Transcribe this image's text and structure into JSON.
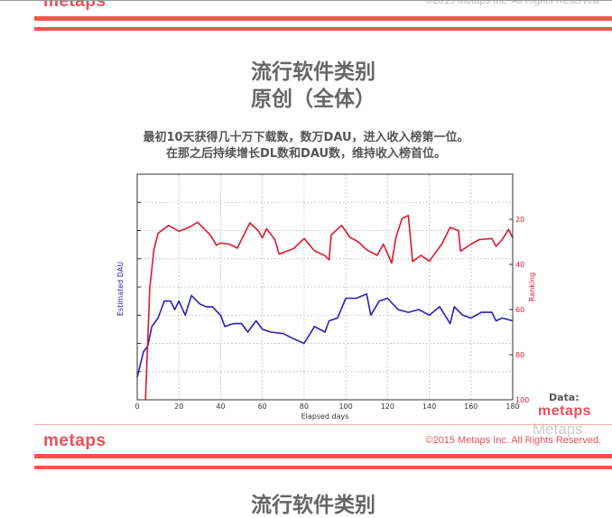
{
  "slide": {
    "logo": "metaps",
    "copyright": "©2015 Metaps Inc.  All Rights Reserved.",
    "title_line1": "流行软件类别",
    "title_line2": "原创（全体）",
    "desc_line1": "最初10天获得几十万下载数，数万DAU，进入收入榜第一位。",
    "desc_line2": "在那之后持续增长DL数和DAU数，维持收入榜首位。",
    "data_label": "Data:",
    "data_logo": "metaps",
    "watermark": "Metaps",
    "next_title": "流行软件类别"
  },
  "colors": {
    "accent": "#f0574a",
    "dau": "#2b1fb0",
    "ranking": "#e0182c"
  },
  "chart_data": {
    "type": "line",
    "xlabel": "Elapsed days",
    "ylabel_left": "Estimated DAU",
    "ylabel_right": "Ranking",
    "xlim": [
      0,
      180
    ],
    "xticks": [
      "0",
      "20",
      "40",
      "60",
      "80",
      "100",
      "120",
      "140",
      "160",
      "180"
    ],
    "ylim_left": [
      0,
      8
    ],
    "ylim_right": [
      0,
      100
    ],
    "right_axis_inverted": true,
    "yticks_right": [
      "20",
      "40",
      "60",
      "80",
      "100"
    ],
    "grid": true,
    "series": [
      {
        "axis": "left",
        "color": "#2b1fb0",
        "x": [
          0,
          3,
          5,
          7,
          10,
          13,
          16,
          18,
          20,
          23,
          26,
          30,
          33,
          36,
          40,
          42,
          46,
          50,
          53,
          57,
          60,
          64,
          70,
          74,
          80,
          85,
          90,
          92,
          96,
          100,
          105,
          110,
          112,
          116,
          120,
          125,
          130,
          135,
          140,
          145,
          150,
          152,
          156,
          160,
          165,
          170,
          172,
          175,
          180
        ],
        "y": [
          0.8,
          1.7,
          1.9,
          2.6,
          2.9,
          3.5,
          3.5,
          3.2,
          3.5,
          3.0,
          3.7,
          3.4,
          3.3,
          3.3,
          3.0,
          2.6,
          2.7,
          2.7,
          2.4,
          2.8,
          2.5,
          2.4,
          2.35,
          2.2,
          2.0,
          2.6,
          2.4,
          2.8,
          2.9,
          3.6,
          3.6,
          3.75,
          3.0,
          3.5,
          3.6,
          3.2,
          3.1,
          3.2,
          3.0,
          3.3,
          2.7,
          3.3,
          3.0,
          2.9,
          3.1,
          3.1,
          2.8,
          2.9,
          2.8
        ]
      },
      {
        "axis": "right",
        "color": "#e0182c",
        "x": [
          4,
          6,
          8,
          10,
          15,
          20,
          25,
          29,
          35,
          38,
          40,
          44,
          48,
          50,
          54,
          58,
          60,
          62,
          66,
          68,
          75,
          80,
          85,
          90,
          92,
          93,
          98,
          102,
          106,
          110,
          115,
          118,
          122,
          124,
          127,
          130,
          132,
          136,
          140,
          146,
          150,
          154,
          155,
          160,
          164,
          170,
          172,
          175,
          178,
          180
        ],
        "y": [
          100,
          50.6,
          33.5,
          26.2,
          22.7,
          25.3,
          23.5,
          21.3,
          26.9,
          31.5,
          30.5,
          31,
          32.8,
          29,
          21.6,
          25,
          28.2,
          24.2,
          29,
          35.4,
          33,
          28.5,
          34,
          36.1,
          38,
          26.9,
          22.7,
          28,
          30,
          33.5,
          36,
          31,
          39.4,
          28,
          19.6,
          18.3,
          38.7,
          36,
          38.5,
          31,
          23.6,
          25,
          34.1,
          31,
          29,
          28.5,
          32,
          29,
          24.5,
          28.2
        ]
      }
    ]
  }
}
